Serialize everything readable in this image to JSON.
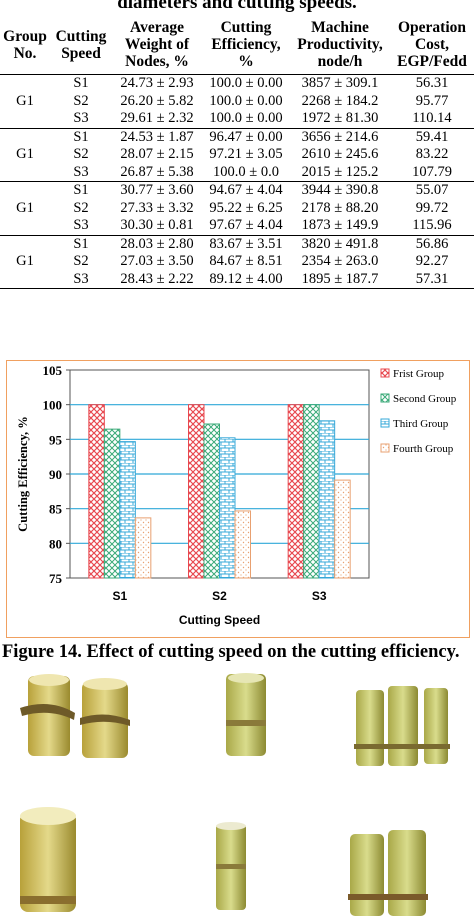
{
  "table_caption": "diameters and cutting speeds.",
  "headers": {
    "group": "Group No.",
    "speed": "Cutting Speed",
    "weight": "Average Weight of Nodes, %",
    "efficiency": "Cutting Efficiency, %",
    "productivity": "Machine Productivity, node/h",
    "cost": "Operation Cost, EGP/Fedd"
  },
  "rows": [
    {
      "group": "G1",
      "speed": "S1",
      "weight": "24.73 ± 2.93",
      "efficiency": "100.0 ± 0.00",
      "productivity": "3857 ± 309.1",
      "cost": "56.31"
    },
    {
      "group": "",
      "speed": "S2",
      "weight": "26.20 ± 5.82",
      "efficiency": "100.0 ± 0.00",
      "productivity": "2268 ± 184.2",
      "cost": "95.77"
    },
    {
      "group": "",
      "speed": "S3",
      "weight": "29.61 ± 2.32",
      "efficiency": "100.0 ± 0.00",
      "productivity": "1972 ± 81.30",
      "cost": "110.14"
    },
    {
      "group": "G1",
      "speed": "S1",
      "weight": "24.53 ± 1.87",
      "efficiency": "96.47 ± 0.00",
      "productivity": "3656 ± 214.6",
      "cost": "59.41"
    },
    {
      "group": "",
      "speed": "S2",
      "weight": "28.07 ± 2.15",
      "efficiency": "97.21 ± 3.05",
      "productivity": "2610 ± 245.6",
      "cost": "83.22"
    },
    {
      "group": "",
      "speed": "S3",
      "weight": "26.87 ± 5.38",
      "efficiency": "100.0 ± 0.0",
      "productivity": "2015 ± 125.2",
      "cost": "107.79"
    },
    {
      "group": "G1",
      "speed": "S1",
      "weight": "30.77 ± 3.60",
      "efficiency": "94.67 ± 4.04",
      "productivity": "3944 ± 390.8",
      "cost": "55.07"
    },
    {
      "group": "",
      "speed": "S2",
      "weight": "27.33 ± 3.32",
      "efficiency": "95.22 ± 6.25",
      "productivity": "2178 ± 88.20",
      "cost": "99.72"
    },
    {
      "group": "",
      "speed": "S3",
      "weight": "30.30 ± 0.81",
      "efficiency": "97.67 ± 4.04",
      "productivity": "1873 ± 149.9",
      "cost": "115.96"
    },
    {
      "group": "G1",
      "speed": "S1",
      "weight": "28.03 ± 2.80",
      "efficiency": "83.67 ± 3.51",
      "productivity": "3820 ± 491.8",
      "cost": "56.86"
    },
    {
      "group": "",
      "speed": "S2",
      "weight": "27.03 ± 3.50",
      "efficiency": "84.67 ± 8.51",
      "productivity": "2354 ± 263.0",
      "cost": "92.27"
    },
    {
      "group": "",
      "speed": "S3",
      "weight": "28.43 ± 2.22",
      "efficiency": "89.12 ± 4.00",
      "productivity": "1895 ± 187.7",
      "cost": "57.31"
    }
  ],
  "colors": {
    "frame": "#f0a060",
    "gridline": "#2fa8d8",
    "series": [
      "#e8484f",
      "#3aaa78",
      "#36a8d8",
      "#e8a070"
    ]
  },
  "chart_data": {
    "type": "bar",
    "categories": [
      "S1",
      "S2",
      "S3"
    ],
    "series": [
      {
        "name": "Frist Group",
        "values": [
          100.0,
          100.0,
          100.0
        ]
      },
      {
        "name": "Second Group",
        "values": [
          96.47,
          97.21,
          100.0
        ]
      },
      {
        "name": "Third Group",
        "values": [
          94.67,
          95.22,
          97.67
        ]
      },
      {
        "name": "Fourth Group",
        "values": [
          83.67,
          84.67,
          89.12
        ]
      }
    ],
    "xlabel": "Cutting Speed",
    "ylabel": "Cutting Efficiency, %",
    "ylim": [
      75,
      105
    ],
    "yticks": [
      75,
      80,
      85,
      90,
      95,
      100,
      105
    ],
    "grid": true,
    "legend": "right"
  },
  "figure_caption": "Figure 14. Effect of cutting speed on the cutting efficiency."
}
